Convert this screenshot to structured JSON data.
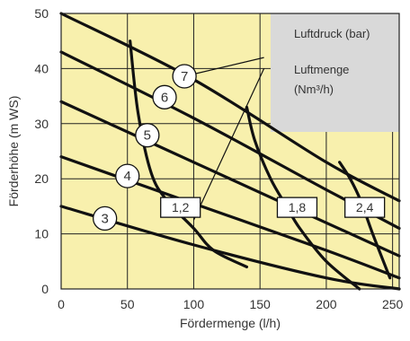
{
  "chart_data": {
    "type": "line",
    "xlabel": "Fördermenge (l/h)",
    "ylabel": "Förderhöhe (m WS)",
    "xlim": [
      0,
      255
    ],
    "ylim": [
      0,
      50
    ],
    "x_ticks": [
      0,
      50,
      100,
      150,
      200,
      250
    ],
    "x_tick_labels": [
      "0",
      "50",
      "100",
      "150",
      "200",
      "250"
    ],
    "y_ticks": [
      0,
      10,
      20,
      30,
      40,
      50
    ],
    "y_tick_labels": [
      "0",
      "10",
      "20",
      "30",
      "40",
      "50"
    ],
    "grid": true,
    "background_color": "#f8f0ad",
    "grid_color": "#222222",
    "line_color": "#111111",
    "pressure_series": [
      {
        "label": "3",
        "points": [
          [
            0,
            15
          ],
          [
            100,
            8
          ],
          [
            200,
            2
          ],
          [
            255,
            0
          ]
        ],
        "marker": [
          33,
          12.8
        ]
      },
      {
        "label": "4",
        "points": [
          [
            0,
            24
          ],
          [
            100,
            15.5
          ],
          [
            200,
            7
          ],
          [
            255,
            2
          ]
        ],
        "marker": [
          50,
          20.5
        ]
      },
      {
        "label": "5",
        "points": [
          [
            0,
            34
          ],
          [
            100,
            23
          ],
          [
            200,
            12
          ],
          [
            255,
            6
          ]
        ],
        "marker": [
          65,
          27.9
        ]
      },
      {
        "label": "6",
        "points": [
          [
            0,
            43
          ],
          [
            100,
            31
          ],
          [
            200,
            18
          ],
          [
            255,
            11
          ]
        ],
        "marker": [
          78,
          34.8
        ]
      },
      {
        "label": "7",
        "points": [
          [
            0,
            50
          ],
          [
            100,
            38
          ],
          [
            200,
            23
          ],
          [
            255,
            16
          ]
        ],
        "marker": [
          93,
          38.6
        ]
      }
    ],
    "airflow_series": [
      {
        "label": "1,2",
        "points": [
          [
            52,
            45
          ],
          [
            58,
            32
          ],
          [
            68,
            21
          ],
          [
            80,
            16
          ],
          [
            100,
            11
          ],
          [
            115,
            7
          ],
          [
            140,
            4
          ]
        ],
        "box_at": [
          90,
          14.8
        ]
      },
      {
        "label": "1,8",
        "points": [
          [
            140,
            33
          ],
          [
            146,
            27
          ],
          [
            158,
            20
          ],
          [
            170,
            15
          ],
          [
            180,
            11
          ],
          [
            200,
            5
          ],
          [
            225,
            0
          ]
        ],
        "box_at": [
          178,
          14.8
        ]
      },
      {
        "label": "2,4",
        "points": [
          [
            210,
            23
          ],
          [
            218,
            20
          ],
          [
            226,
            16
          ],
          [
            235,
            10
          ],
          [
            248,
            2
          ]
        ],
        "box_at": [
          229,
          14.8
        ]
      }
    ],
    "pointer_lines": [
      [
        [
          100,
          12.5
        ],
        [
          153,
          40
        ]
      ],
      [
        [
          93,
          38.6
        ],
        [
          153,
          42
        ]
      ]
    ],
    "legend": {
      "position": "top-right",
      "box_color": "#d9d9d9",
      "items": [
        "Luftdruck (bar)",
        "Luftmenge",
        "(Nm³/h)"
      ],
      "extent_x": [
        158,
        255
      ],
      "extent_y": [
        28.5,
        50
      ]
    }
  }
}
